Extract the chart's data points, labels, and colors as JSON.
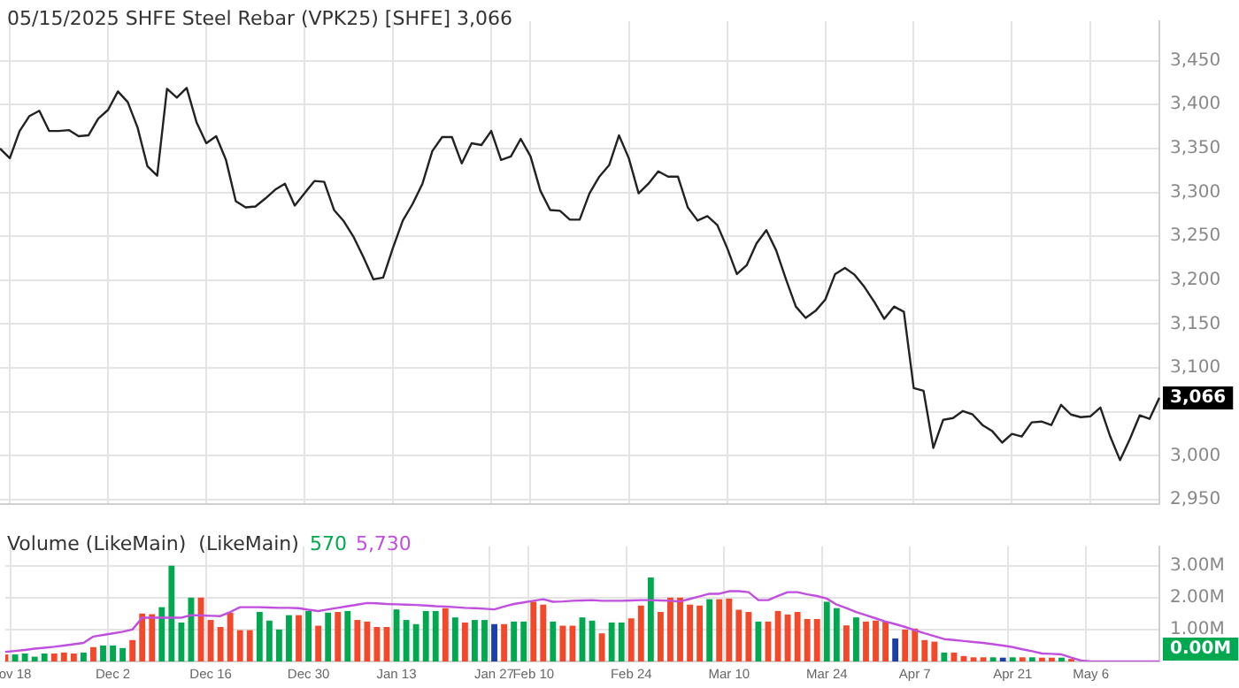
{
  "chart_data": [
    {
      "type": "line",
      "title": "05/15/2025 SHFE Steel Rebar (VPK25) [SHFE] 3,066",
      "categories": [
        null,
        null,
        null,
        null,
        null,
        null,
        null,
        null,
        null,
        null,
        null,
        null,
        null,
        null,
        null,
        null,
        null,
        null,
        null,
        null,
        null,
        null,
        null,
        null,
        null,
        null,
        null,
        null,
        null,
        null,
        null,
        null,
        null,
        null,
        null,
        null,
        null,
        null,
        null,
        null,
        null,
        null,
        null,
        null,
        null,
        null,
        null,
        null,
        null,
        null,
        null,
        null,
        null,
        null,
        null,
        null,
        null,
        null,
        null,
        null,
        null,
        null,
        null,
        null,
        null,
        null,
        null,
        null,
        null,
        null,
        null,
        null,
        null,
        null,
        null,
        null,
        null,
        null,
        null,
        null,
        null,
        null,
        null,
        null,
        null,
        null,
        null,
        null,
        null,
        null,
        null,
        null,
        null,
        null,
        null,
        null,
        null,
        null,
        null,
        null,
        null,
        null,
        null,
        null,
        null,
        null,
        null,
        null,
        null,
        null,
        null,
        null,
        null,
        null,
        null,
        null,
        null,
        null,
        null
      ],
      "series": [
        {
          "color": "#222222",
          "values": [
            3350,
            3339,
            3370,
            3387,
            3393,
            3370,
            3370,
            3371,
            3364,
            3365,
            3384,
            3394,
            3415,
            3403,
            3374,
            3330,
            3319,
            3418,
            3408,
            3419,
            3380,
            3356,
            3364,
            3337,
            3290,
            3283,
            3284,
            3293,
            3303,
            3310,
            3285,
            3299,
            3313,
            3312,
            3280,
            3267,
            3249,
            3226,
            3201,
            3203,
            3237,
            3268,
            3287,
            3310,
            3347,
            3363,
            3363,
            3333,
            3356,
            3354,
            3370,
            3337,
            3341,
            3361,
            3341,
            3302,
            3280,
            3279,
            3269,
            3269,
            3299,
            3318,
            3331,
            3365,
            3339,
            3299,
            3310,
            3324,
            3318,
            3318,
            3283,
            3268,
            3273,
            3263,
            3237,
            3207,
            3217,
            3242,
            3257,
            3234,
            3201,
            3170,
            3157,
            3165,
            3178,
            3207,
            3214,
            3206,
            3192,
            3175,
            3156,
            3170,
            3164,
            3077,
            3074,
            3009,
            3041,
            3043,
            3051,
            3047,
            3035,
            3028,
            3015,
            3025,
            3022,
            3038,
            3039,
            3035,
            3058,
            3047,
            3044,
            3045,
            3055,
            3022,
            2995,
            3019,
            3046,
            3042,
            3066
          ]
        }
      ],
      "ylim": [
        2945,
        3495
      ],
      "yticks": [
        {
          "value": 2950,
          "label": "2,950"
        },
        {
          "value": 3000,
          "label": "3,000"
        },
        {
          "value": 3050,
          "label": null
        },
        {
          "value": 3100,
          "label": "3,100"
        },
        {
          "value": 3150,
          "label": "3,150"
        },
        {
          "value": 3200,
          "label": "3,200"
        },
        {
          "value": 3250,
          "label": "3,250"
        },
        {
          "value": 3300,
          "label": "3,300"
        },
        {
          "value": 3350,
          "label": "3,350"
        },
        {
          "value": 3400,
          "label": "3,400"
        },
        {
          "value": 3450,
          "label": "3,450"
        }
      ],
      "grid": true,
      "tick_labels": "y",
      "annotations": [
        {
          "text": "3,066",
          "y": 3066
        }
      ]
    },
    {
      "type": "bar",
      "title": "Volume (LikeMain)  (LikeMain)",
      "categories": [
        null,
        "ov 18",
        null,
        null,
        null,
        null,
        null,
        null,
        null,
        null,
        null,
        "Dec 2",
        null,
        null,
        null,
        null,
        null,
        null,
        null,
        null,
        null,
        "Dec 16",
        null,
        null,
        null,
        null,
        null,
        null,
        null,
        null,
        null,
        "Dec 30",
        null,
        null,
        null,
        null,
        null,
        null,
        null,
        null,
        "Jan 13",
        null,
        null,
        null,
        null,
        null,
        null,
        null,
        null,
        null,
        "Jan 27",
        null,
        null,
        null,
        "Feb 10",
        null,
        null,
        null,
        null,
        null,
        null,
        null,
        null,
        null,
        "Feb 24",
        null,
        null,
        null,
        null,
        null,
        null,
        null,
        null,
        null,
        "Mar 10",
        null,
        null,
        null,
        null,
        null,
        null,
        null,
        null,
        null,
        "Mar 24",
        null,
        null,
        null,
        null,
        null,
        null,
        null,
        null,
        "Apr 7",
        null,
        null,
        null,
        null,
        null,
        null,
        null,
        null,
        null,
        "Apr 21",
        null,
        null,
        null,
        null,
        null,
        null,
        null,
        "May 6",
        null,
        null,
        null,
        null,
        null,
        null,
        null
      ],
      "series": [
        {
          "colors": [
            "#f4482a",
            "#00a94f",
            "#00a94f",
            "#00a94f",
            "#00a94f",
            "#f4482a",
            "#f4482a",
            "#f4482a",
            "#00a94f",
            "#f4482a",
            "#00a94f",
            "#00a94f",
            "#00a94f",
            "#f4482a",
            "#f4482a",
            "#f4482a",
            "#00a94f",
            "#00a94f",
            "#00a94f",
            "#00a94f",
            "#f4482a",
            "#f4482a",
            "#f4482a",
            "#f4482a",
            "#f4482a",
            "#f4482a",
            "#00a94f",
            "#00a94f",
            "#00a94f",
            "#00a94f",
            "#f4482a",
            "#00a94f",
            "#f4482a",
            "#00a94f",
            "#f4482a",
            "#00a94f",
            "#f4482a",
            "#f4482a",
            "#f4482a",
            "#f4482a",
            "#00a94f",
            "#00a94f",
            "#00a94f",
            "#00a94f",
            "#00a94f",
            "#f4482a",
            "#00a94f",
            "#f4482a",
            "#00a94f",
            "#00a94f",
            "#1c3fa8",
            "#f4482a",
            "#00a94f",
            "#00a94f",
            "#f4482a",
            "#f4482a",
            "#00a94f",
            "#f4482a",
            "#f4482a",
            "#00a94f",
            "#00a94f",
            "#f4482a",
            "#00a94f",
            "#00a94f",
            "#f4482a",
            "#f4482a",
            "#00a94f",
            "#f4482a",
            "#f4482a",
            "#f4482a",
            "#f4482a",
            "#f4482a",
            "#00a94f",
            "#f4482a",
            "#f4482a",
            "#f4482a",
            "#f4482a",
            "#00a94f",
            "#f4482a",
            "#f4482a",
            "#f4482a",
            "#f4482a",
            "#f4482a",
            "#f4482a",
            "#00a94f",
            "#00a94f",
            "#f4482a",
            "#00a94f",
            "#f4482a",
            "#f4482a",
            "#f4482a",
            "#1c3fa8",
            "#f4482a",
            "#f4482a",
            "#f4482a",
            "#f4482a",
            "#00a94f",
            "#f4482a",
            "#f4482a",
            "#f4482a",
            "#f4482a",
            "#00a94f",
            "#1c3fa8",
            "#00a94f",
            "#f4482a",
            "#00a94f",
            "#f4482a",
            "#f4482a",
            "#00a94f",
            "#f4482a",
            "#f4482a",
            "#00a94f",
            "#00a94f",
            "#f4482a",
            "#f4482a",
            "#00a94f",
            "#00a94f",
            "#f4482a",
            "#00a94f"
          ],
          "values": [
            0.22,
            0.22,
            0.25,
            0.15,
            0.25,
            0.25,
            0.28,
            0.25,
            0.28,
            0.45,
            0.5,
            0.5,
            0.42,
            0.67,
            1.5,
            1.48,
            1.7,
            3.0,
            1.22,
            2.0,
            2.0,
            1.3,
            1.08,
            1.53,
            0.98,
            0.98,
            1.55,
            1.28,
            1.0,
            1.45,
            1.45,
            1.58,
            1.12,
            1.53,
            1.55,
            1.58,
            1.3,
            1.25,
            1.08,
            1.08,
            1.63,
            1.3,
            1.17,
            1.58,
            1.58,
            1.67,
            1.38,
            1.22,
            1.3,
            1.3,
            1.17,
            1.17,
            1.25,
            1.25,
            1.87,
            1.78,
            1.25,
            1.12,
            1.12,
            1.38,
            1.28,
            0.88,
            1.22,
            1.22,
            1.35,
            1.75,
            2.63,
            1.55,
            2.0,
            2.0,
            1.78,
            1.75,
            1.95,
            1.95,
            1.97,
            1.62,
            1.55,
            1.25,
            1.25,
            1.58,
            1.47,
            1.55,
            1.33,
            1.33,
            1.87,
            1.67,
            1.13,
            1.38,
            1.25,
            1.28,
            1.25,
            0.72,
            1.0,
            1.03,
            0.67,
            0.62,
            0.28,
            0.28,
            0.17,
            0.13,
            0.13,
            0.13,
            0.12,
            0.13,
            0.13,
            0.13,
            0.12,
            0.12,
            0.12,
            0.08,
            0,
            0,
            0,
            0,
            0,
            0,
            0,
            0,
            0
          ]
        },
        {
          "type": "line",
          "color": "#c04fdf",
          "values": [
            0.3,
            0.33,
            0.36,
            0.4,
            0.43,
            0.46,
            0.5,
            0.54,
            0.58,
            0.78,
            0.83,
            0.88,
            0.93,
            1.0,
            1.37,
            1.37,
            1.37,
            1.37,
            1.37,
            1.45,
            1.44,
            1.43,
            1.42,
            1.55,
            1.7,
            1.7,
            1.7,
            1.69,
            1.68,
            1.68,
            1.67,
            1.62,
            1.58,
            1.63,
            1.68,
            1.73,
            1.78,
            1.83,
            1.82,
            1.8,
            1.79,
            1.78,
            1.77,
            1.75,
            1.73,
            1.72,
            1.7,
            1.68,
            1.67,
            1.65,
            1.63,
            1.72,
            1.8,
            1.85,
            1.9,
            1.95,
            1.87,
            1.88,
            1.9,
            1.91,
            1.92,
            1.9,
            1.9,
            1.9,
            1.91,
            1.92,
            1.92,
            1.91,
            1.9,
            1.88,
            1.96,
            2.04,
            2.12,
            2.12,
            2.2,
            2.2,
            2.17,
            1.92,
            1.92,
            2.05,
            2.17,
            2.17,
            2.1,
            2.05,
            1.97,
            1.78,
            1.67,
            1.55,
            1.45,
            1.35,
            1.25,
            1.17,
            1.08,
            0.98,
            0.88,
            0.79,
            0.7,
            0.67,
            0.64,
            0.61,
            0.58,
            0.54,
            0.5,
            0.45,
            0.38,
            0.32,
            0.25,
            0.24,
            0.22,
            0.12,
            0.03,
            0,
            0,
            0,
            0,
            0,
            0,
            0,
            0
          ]
        }
      ],
      "ylim": [
        0,
        3.6
      ],
      "yticks": [
        {
          "value": 1,
          "label": "1.00M"
        },
        {
          "value": 2,
          "label": "2.00M"
        },
        {
          "value": 3,
          "label": "3.00M"
        }
      ],
      "grid": true,
      "annotations": [
        "570",
        "5,730",
        "0.00M"
      ]
    }
  ]
}
